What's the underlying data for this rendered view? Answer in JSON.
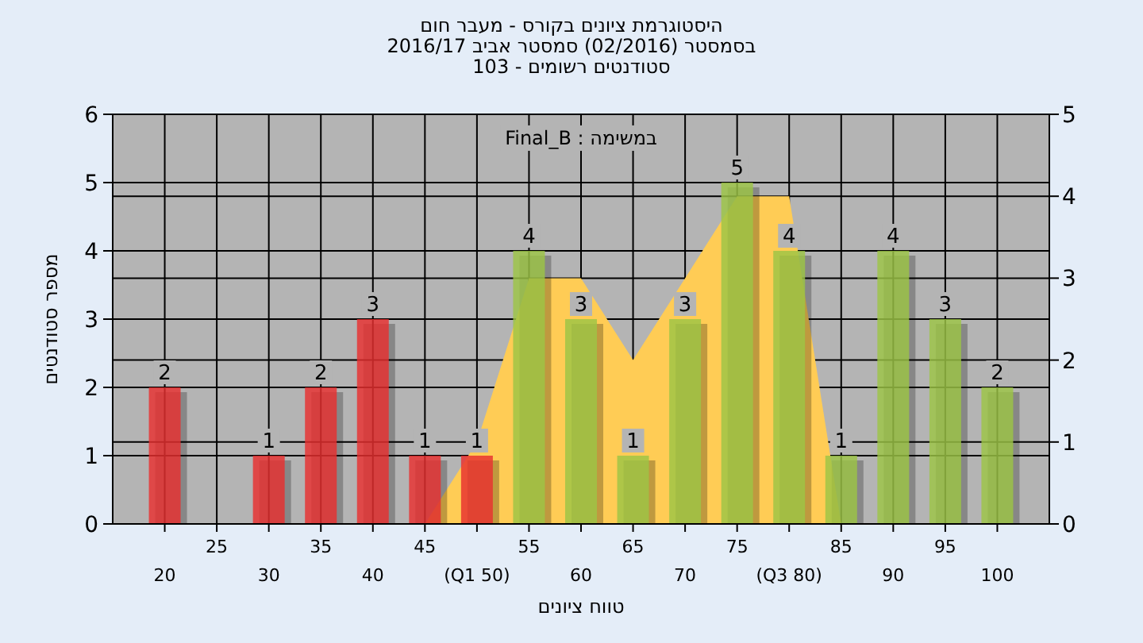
{
  "chart_data": {
    "type": "bar",
    "title": "היסטוגרמת ציונים בקורס - מעבר חום",
    "subtitle": "בסמסטר  (02/2016)  סמסטר אביב 2016/17\nסטודנטים רשומים - 103",
    "xlabel": "טווח ציונים",
    "ylabel": "מספר סטודנטים",
    "annotations": [
      "במשימה : Final_B"
    ],
    "categories": [
      "20",
      "25",
      "30",
      "35",
      "40",
      "45",
      "(Q1 50)",
      "55",
      "60",
      "65",
      "70",
      "75",
      "(Q3 80)",
      "85",
      "90",
      "95",
      "100"
    ],
    "series": [
      {
        "type": "area",
        "axis": "y2",
        "color": "#ffcc55",
        "values": [
          null,
          null,
          null,
          null,
          null,
          0,
          1,
          3,
          3,
          2,
          3,
          4,
          4,
          0,
          null,
          null,
          null
        ]
      },
      {
        "value_labels": [
          "2",
          null,
          "1",
          "2",
          "3",
          "1",
          "1",
          "4",
          "3",
          "1",
          "3",
          "5",
          "4",
          "1",
          "4",
          "3",
          "2"
        ],
        "colors": [
          "#e83030",
          null,
          "#e83030",
          "#e83030",
          "#e83030",
          "#e83030",
          "#e83030",
          "#9cc445",
          "#9cc445",
          "#9cc445",
          "#9cc445",
          "#9cc445",
          "#9cc445",
          "#9cc445",
          "#9cc445",
          "#9cc445",
          "#9cc445"
        ],
        "values": [
          2,
          null,
          1,
          2,
          3,
          1,
          1,
          4,
          3,
          1,
          3,
          5,
          4,
          1,
          4,
          3,
          2
        ]
      }
    ],
    "ylim": [
      0,
      6
    ],
    "yticks": [
      0,
      1,
      2,
      3,
      4,
      5,
      6
    ],
    "y2lim": [
      0,
      5
    ],
    "y2ticks": [
      0,
      1,
      2,
      3,
      4,
      5
    ],
    "grid": true
  }
}
